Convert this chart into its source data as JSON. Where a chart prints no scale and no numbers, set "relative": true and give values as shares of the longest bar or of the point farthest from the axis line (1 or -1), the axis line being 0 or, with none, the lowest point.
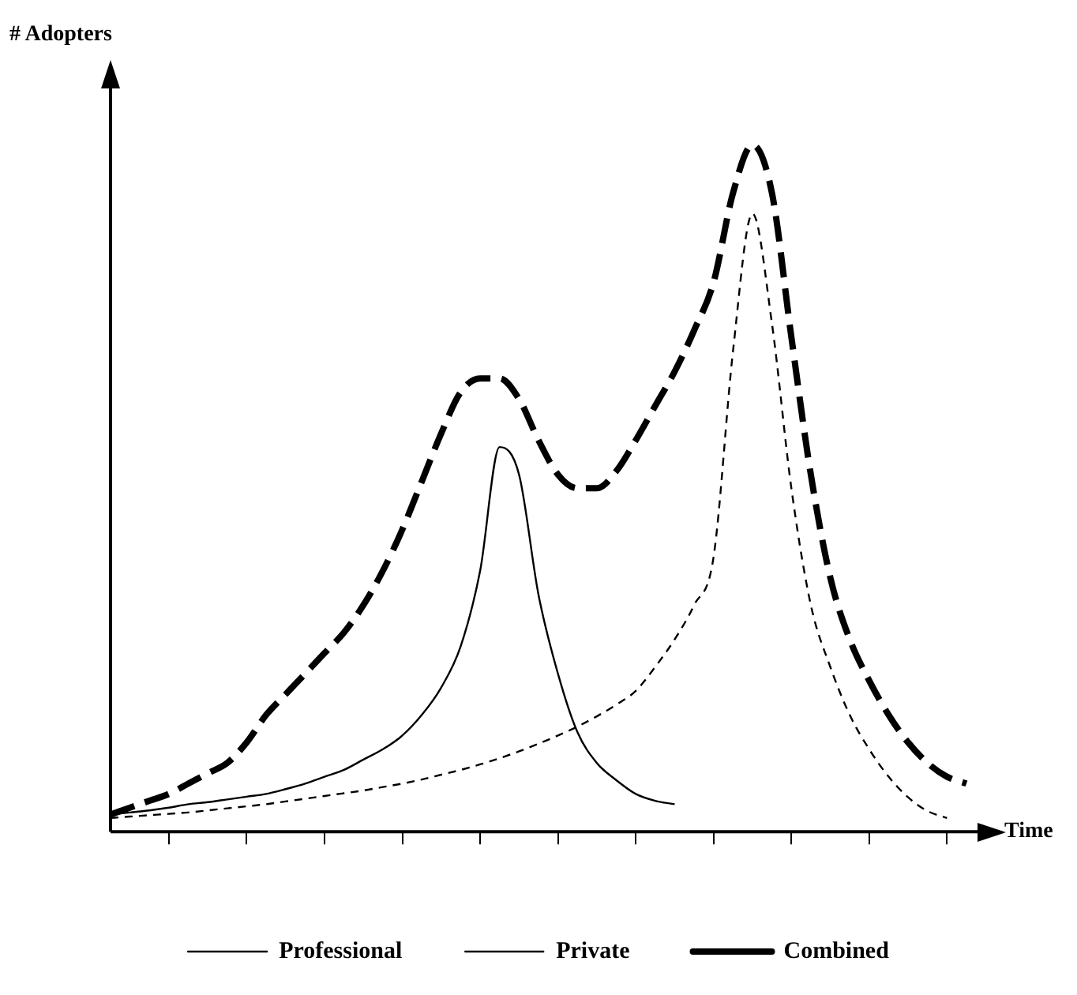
{
  "chart_data": {
    "type": "line",
    "relative": true,
    "xlabel": "Time",
    "ylabel": "# Adopters",
    "marker": "none",
    "legend": "bottom",
    "grid": false,
    "categories": [
      null,
      null,
      null,
      null,
      null,
      null,
      null,
      null,
      null,
      null,
      null,
      null,
      null,
      null,
      null,
      null,
      null,
      null,
      null,
      null,
      null,
      null,
      null,
      null,
      null,
      null,
      null,
      null,
      null,
      null,
      null,
      null,
      null,
      null,
      null,
      null,
      null,
      null,
      null,
      null,
      null,
      null,
      null,
      null,
      null
    ],
    "series": [
      {
        "name": "Professional",
        "color": "#000000",
        "line_style": "solid",
        "values": [
          0.025,
          0.028,
          0.031,
          0.035,
          0.04,
          0.043,
          0.047,
          0.051,
          0.055,
          0.062,
          0.07,
          0.08,
          0.09,
          0.105,
          0.12,
          0.14,
          0.17,
          0.21,
          0.27,
          0.38,
          0.56,
          0.52,
          0.345,
          0.23,
          0.145,
          0.1,
          0.075,
          0.055,
          0.045,
          0.04,
          null,
          null,
          null,
          null,
          null,
          null,
          null,
          null,
          null,
          null,
          null,
          null,
          null,
          null,
          null
        ]
      },
      {
        "name": "Private",
        "color": "#000000",
        "line_style": "dashed",
        "values": [
          0.02,
          0.022,
          0.024,
          0.026,
          0.028,
          0.031,
          0.034,
          0.037,
          0.04,
          0.044,
          0.048,
          0.052,
          0.056,
          0.06,
          0.065,
          0.07,
          0.076,
          0.083,
          0.09,
          0.098,
          0.107,
          0.117,
          0.128,
          0.14,
          0.153,
          0.168,
          0.185,
          0.205,
          0.24,
          0.28,
          0.33,
          0.4,
          0.7,
          0.9,
          0.74,
          0.5,
          0.33,
          0.24,
          0.17,
          0.12,
          0.08,
          0.05,
          0.03,
          0.02,
          null
        ]
      },
      {
        "name": "Combined",
        "color": "#000000",
        "line_style": "dashed",
        "values": [
          0.025,
          0.035,
          0.045,
          0.055,
          0.07,
          0.085,
          0.1,
          0.13,
          0.17,
          0.2,
          0.23,
          0.26,
          0.29,
          0.33,
          0.38,
          0.44,
          0.51,
          0.58,
          0.64,
          0.66,
          0.66,
          0.63,
          0.57,
          0.52,
          0.5,
          0.5,
          0.525,
          0.57,
          0.62,
          0.67,
          0.73,
          0.8,
          0.93,
          1,
          0.93,
          0.72,
          0.52,
          0.37,
          0.28,
          0.22,
          0.17,
          0.13,
          0.1,
          0.08,
          0.07
        ]
      }
    ]
  }
}
